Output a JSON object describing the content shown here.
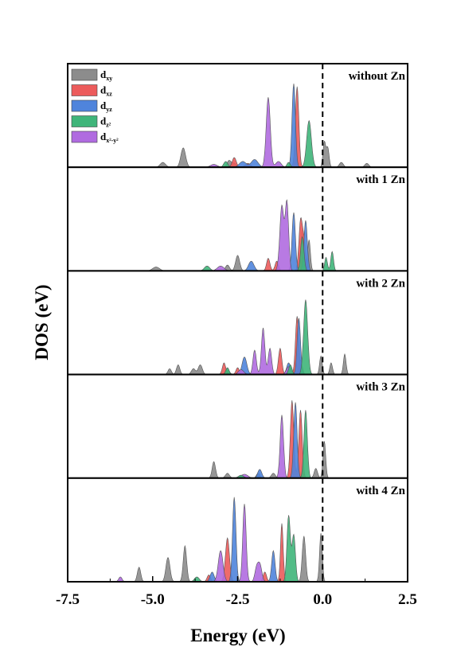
{
  "chart_data": {
    "type": "area",
    "xlabel": "Energy (eV)",
    "ylabel": "DOS (eV)",
    "xlim": [
      -7.5,
      2.5
    ],
    "xticks": [
      "-7.5",
      "-5.0",
      "-2.5",
      "0.0",
      "2.5"
    ],
    "fermi_level": 0.0,
    "legend_position": "top-left",
    "series_legend": [
      {
        "name": "d",
        "sub": "xy",
        "color": "#8c8c8c"
      },
      {
        "name": "d",
        "sub": "xz",
        "color": "#ec5b5b"
      },
      {
        "name": "d",
        "sub": "yz",
        "color": "#4f84dc"
      },
      {
        "name": "d",
        "sub": "z²",
        "color": "#3fb57a"
      },
      {
        "name": "d",
        "sub": "x²-y²",
        "color": "#b06be0"
      }
    ],
    "panels": [
      {
        "label": "without Zn",
        "peaks": {
          "dxy": [
            [
              -4.7,
              0.05,
              0.08
            ],
            [
              -4.1,
              0.2,
              0.07
            ],
            [
              -2.75,
              0.07,
              0.06
            ],
            [
              -2.6,
              0.04,
              0.06
            ],
            [
              0.05,
              0.26,
              0.04
            ],
            [
              0.15,
              0.2,
              0.04
            ],
            [
              0.55,
              0.05,
              0.06
            ],
            [
              1.3,
              0.04,
              0.06
            ]
          ],
          "dxz": [
            [
              -2.6,
              0.1,
              0.06
            ],
            [
              -2.2,
              0.04,
              0.08
            ],
            [
              -0.75,
              0.83,
              0.05
            ]
          ],
          "dyz": [
            [
              -2.35,
              0.06,
              0.1
            ],
            [
              -2.0,
              0.08,
              0.1
            ],
            [
              -0.85,
              0.86,
              0.05
            ]
          ],
          "dz2": [
            [
              -2.85,
              0.06,
              0.06
            ],
            [
              -0.4,
              0.48,
              0.07
            ],
            [
              -1.0,
              0.05,
              0.05
            ]
          ],
          "dx2y2": [
            [
              -3.2,
              0.03,
              0.1
            ],
            [
              -1.6,
              0.72,
              0.06
            ],
            [
              -1.3,
              0.06,
              0.08
            ]
          ]
        }
      },
      {
        "label": "with 1 Zn",
        "peaks": {
          "dxy": [
            [
              -4.9,
              0.04,
              0.1
            ],
            [
              -2.5,
              0.16,
              0.06
            ],
            [
              -2.8,
              0.06,
              0.06
            ],
            [
              -0.6,
              0.42,
              0.04
            ],
            [
              -0.4,
              0.32,
              0.04
            ]
          ],
          "dxz": [
            [
              -1.6,
              0.13,
              0.05
            ],
            [
              -1.35,
              0.1,
              0.05
            ],
            [
              -0.65,
              0.5,
              0.05
            ],
            [
              -0.55,
              0.3,
              0.05
            ]
          ],
          "dyz": [
            [
              -2.1,
              0.1,
              0.08
            ],
            [
              -0.85,
              0.6,
              0.05
            ],
            [
              -0.5,
              0.52,
              0.05
            ]
          ],
          "dz2": [
            [
              -3.4,
              0.05,
              0.08
            ],
            [
              -0.6,
              0.35,
              0.05
            ],
            [
              0.1,
              0.14,
              0.04
            ],
            [
              0.28,
              0.2,
              0.04
            ]
          ],
          "dx2y2": [
            [
              -3.0,
              0.05,
              0.1
            ],
            [
              -1.2,
              0.67,
              0.06
            ],
            [
              -1.05,
              0.7,
              0.05
            ]
          ]
        }
      },
      {
        "label": "with 2 Zn",
        "peaks": {
          "dxy": [
            [
              -4.5,
              0.06,
              0.05
            ],
            [
              -4.25,
              0.1,
              0.05
            ],
            [
              -3.8,
              0.06,
              0.06
            ],
            [
              -3.6,
              0.1,
              0.06
            ],
            [
              -2.8,
              0.05,
              0.06
            ],
            [
              -0.65,
              0.15,
              0.05
            ],
            [
              -0.05,
              0.19,
              0.04
            ],
            [
              0.25,
              0.12,
              0.04
            ],
            [
              0.65,
              0.21,
              0.04
            ]
          ],
          "dxz": [
            [
              -2.9,
              0.12,
              0.05
            ],
            [
              -2.5,
              0.07,
              0.05
            ],
            [
              -1.25,
              0.27,
              0.05
            ],
            [
              -0.75,
              0.6,
              0.05
            ]
          ],
          "dyz": [
            [
              -2.3,
              0.18,
              0.07
            ],
            [
              -1.0,
              0.12,
              0.06
            ],
            [
              -0.7,
              0.58,
              0.05
            ]
          ],
          "dz2": [
            [
              -2.8,
              0.07,
              0.05
            ],
            [
              -0.95,
              0.1,
              0.05
            ],
            [
              -0.5,
              0.77,
              0.06
            ]
          ],
          "dx2y2": [
            [
              -2.4,
              0.05,
              0.08
            ],
            [
              -2.0,
              0.25,
              0.05
            ],
            [
              -1.75,
              0.48,
              0.05
            ],
            [
              -1.55,
              0.27,
              0.05
            ],
            [
              -1.0,
              0.08,
              0.07
            ]
          ]
        }
      },
      {
        "label": "with 3 Zn",
        "peaks": {
          "dxy": [
            [
              -3.2,
              0.17,
              0.05
            ],
            [
              -2.8,
              0.05,
              0.06
            ],
            [
              -1.9,
              0.05,
              0.05
            ],
            [
              -1.45,
              0.05,
              0.06
            ],
            [
              -0.2,
              0.1,
              0.05
            ],
            [
              0.05,
              0.38,
              0.04
            ]
          ],
          "dxz": [
            [
              -0.9,
              0.8,
              0.05
            ],
            [
              -0.65,
              0.7,
              0.05
            ]
          ],
          "dyz": [
            [
              -1.85,
              0.09,
              0.06
            ],
            [
              -0.8,
              0.78,
              0.05
            ]
          ],
          "dz2": [
            [
              -2.4,
              0.03,
              0.08
            ],
            [
              -0.5,
              0.7,
              0.05
            ]
          ],
          "dx2y2": [
            [
              -2.3,
              0.04,
              0.1
            ],
            [
              -1.2,
              0.65,
              0.05
            ]
          ]
        }
      },
      {
        "label": "with 4 Zn",
        "peaks": {
          "dxy": [
            [
              -5.4,
              0.15,
              0.05
            ],
            [
              -4.55,
              0.25,
              0.06
            ],
            [
              -4.05,
              0.37,
              0.05
            ],
            [
              -0.55,
              0.47,
              0.05
            ],
            [
              -0.05,
              0.5,
              0.04
            ]
          ],
          "dxz": [
            [
              -3.35,
              0.07,
              0.05
            ],
            [
              -2.8,
              0.45,
              0.06
            ],
            [
              -1.2,
              0.6,
              0.04
            ],
            [
              -1.7,
              0.1,
              0.05
            ]
          ],
          "dyz": [
            [
              -3.25,
              0.1,
              0.06
            ],
            [
              -2.6,
              0.87,
              0.05
            ],
            [
              -1.45,
              0.32,
              0.05
            ]
          ],
          "dz2": [
            [
              -3.7,
              0.05,
              0.07
            ],
            [
              -1.0,
              0.68,
              0.05
            ],
            [
              -0.85,
              0.48,
              0.05
            ]
          ],
          "dx2y2": [
            [
              -5.95,
              0.05,
              0.05
            ],
            [
              -3.0,
              0.32,
              0.07
            ],
            [
              -2.3,
              0.8,
              0.05
            ],
            [
              -1.85,
              0.18,
              0.06
            ],
            [
              -1.95,
              0.12,
              0.05
            ]
          ]
        }
      }
    ]
  }
}
